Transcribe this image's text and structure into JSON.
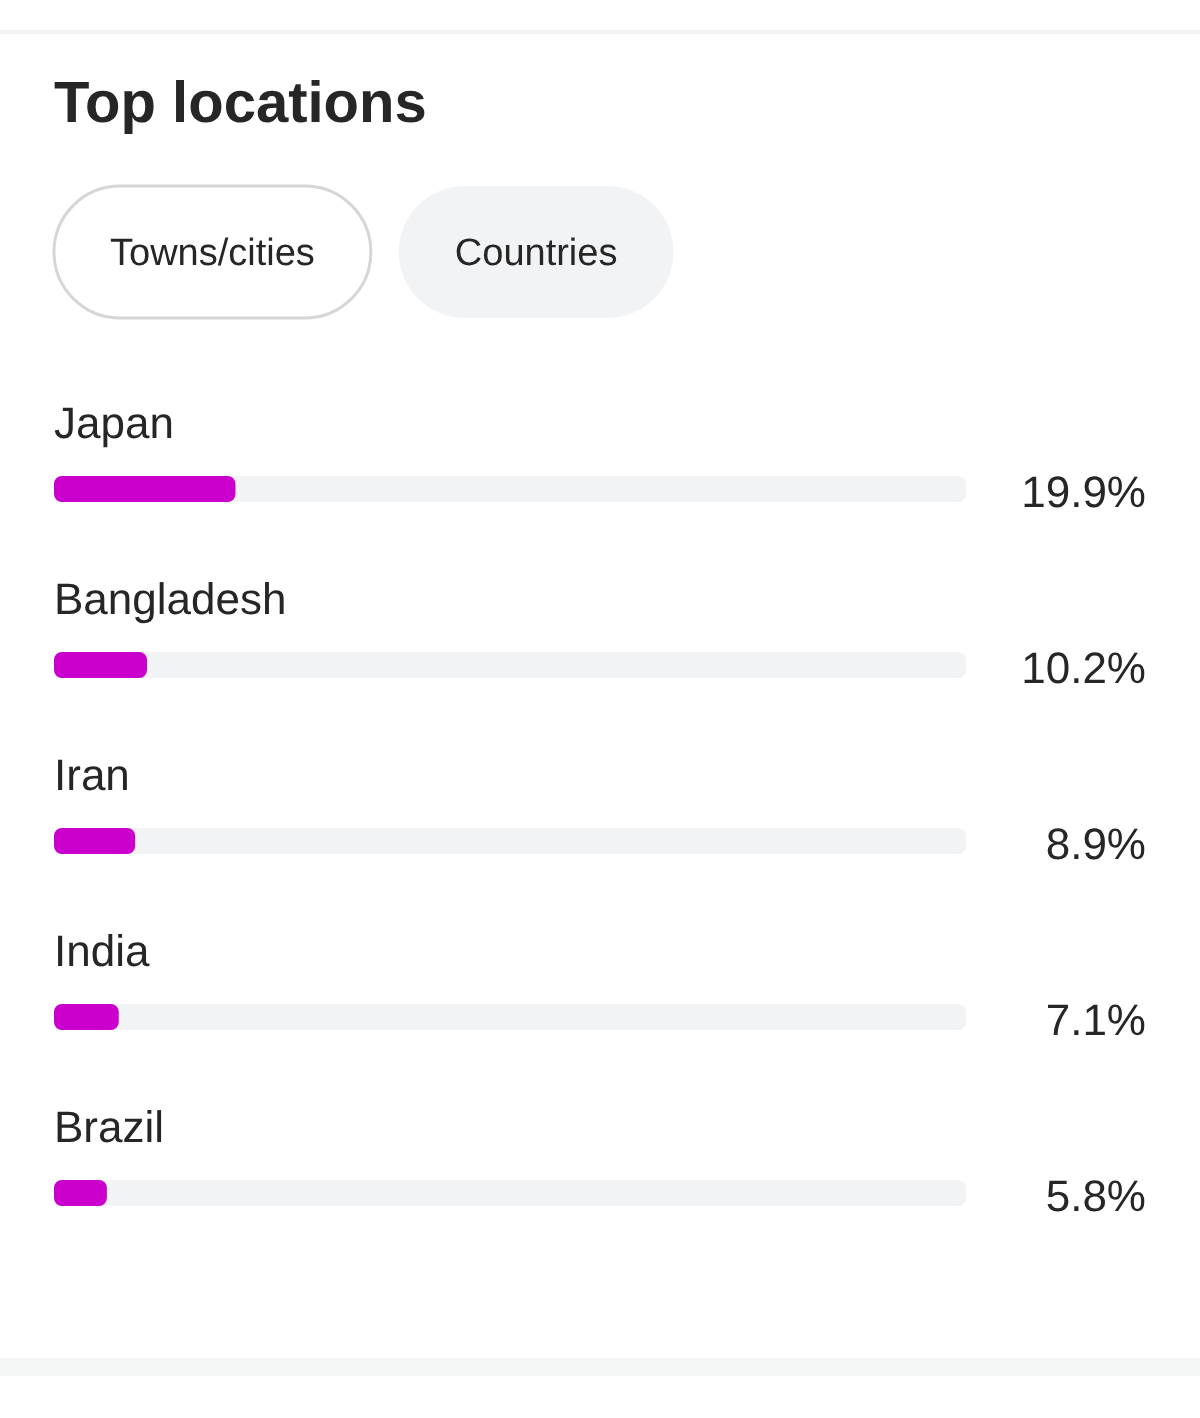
{
  "chart_data": {
    "type": "bar",
    "orientation": "horizontal",
    "title": "Top locations",
    "annotations": [
      "Towns/cities",
      "Countries"
    ],
    "categories": [
      "Japan",
      "Bangladesh",
      "Iran",
      "India",
      "Brazil"
    ],
    "values": [
      19.9,
      10.2,
      8.9,
      7.1,
      5.8
    ],
    "value_labels": [
      "19.9%",
      "10.2%",
      "8.9%",
      "7.1%",
      "5.8%"
    ],
    "color": "#cc00cc",
    "xlim": [
      0,
      100
    ],
    "tick_labels": "y"
  }
}
